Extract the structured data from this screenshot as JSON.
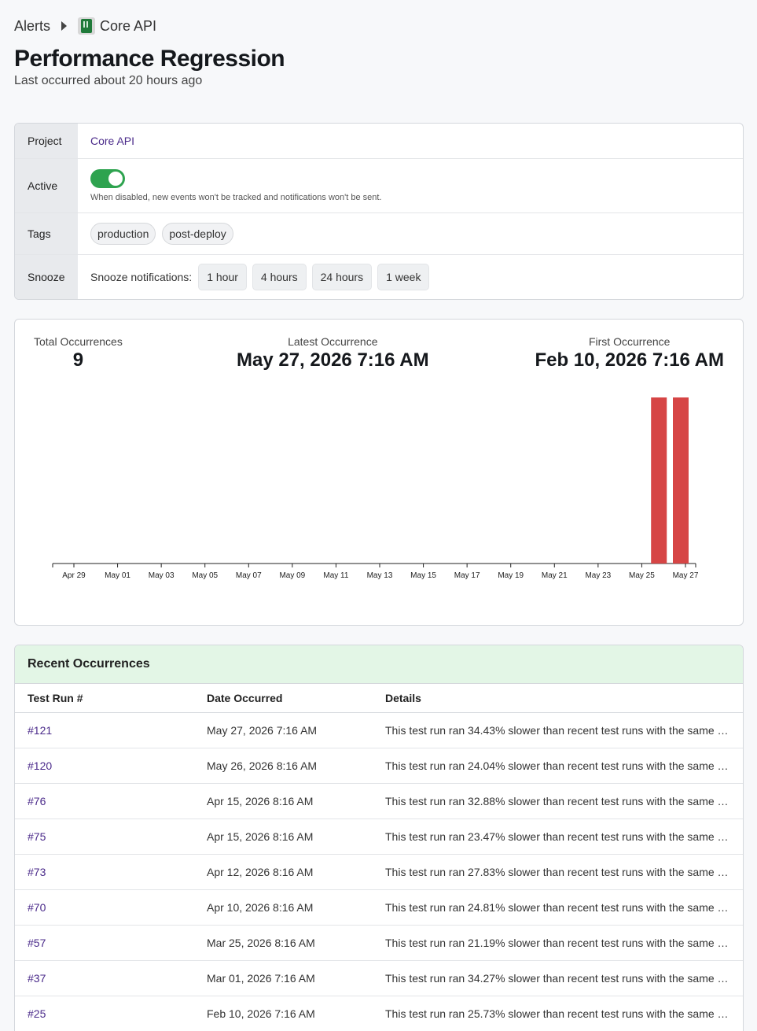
{
  "breadcrumb": {
    "root": "Alerts",
    "project": "Core API"
  },
  "title": "Performance Regression",
  "subtitle": "Last occurred about 20 hours ago",
  "details": {
    "project_label": "Project",
    "project_value": "Core API",
    "active_label": "Active",
    "active_state": true,
    "active_hint": "When disabled, new events won't be tracked and notifications won't be sent.",
    "tags_label": "Tags",
    "tags": [
      "production",
      "post-deploy"
    ],
    "snooze_label": "Snooze",
    "snooze_prompt": "Snooze notifications:",
    "snooze_options": [
      "1 hour",
      "4 hours",
      "24 hours",
      "1 week"
    ]
  },
  "stats": {
    "total_label": "Total Occurrences",
    "total_value": "9",
    "latest_label": "Latest Occurrence",
    "latest_value": "May 27, 2026 7:16 AM",
    "first_label": "First Occurrence",
    "first_value": "Feb 10, 2026 7:16 AM"
  },
  "chart_data": {
    "type": "bar",
    "x": [
      "Apr 29",
      "May 01",
      "May 03",
      "May 05",
      "May 07",
      "May 09",
      "May 11",
      "May 13",
      "May 15",
      "May 17",
      "May 19",
      "May 21",
      "May 23",
      "May 25",
      "May 27"
    ],
    "bars": [
      {
        "date": "May 26",
        "value": 1
      },
      {
        "date": "May 27",
        "value": 1
      }
    ],
    "color": "#d64545"
  },
  "occurrences": {
    "title": "Recent Occurrences",
    "columns": [
      "Test Run #",
      "Date Occurred",
      "Details"
    ],
    "rows": [
      {
        "run": "#121",
        "date": "May 27, 2026 7:16 AM",
        "details": "This test run ran 34.43% slower than recent test runs with the same test suite."
      },
      {
        "run": "#120",
        "date": "May 26, 2026 8:16 AM",
        "details": "This test run ran 24.04% slower than recent test runs with the same test suite."
      },
      {
        "run": "#76",
        "date": "Apr 15, 2026 8:16 AM",
        "details": "This test run ran 32.88% slower than recent test runs with the same test suite."
      },
      {
        "run": "#75",
        "date": "Apr 15, 2026 8:16 AM",
        "details": "This test run ran 23.47% slower than recent test runs with the same test suite."
      },
      {
        "run": "#73",
        "date": "Apr 12, 2026 8:16 AM",
        "details": "This test run ran 27.83% slower than recent test runs with the same test suite."
      },
      {
        "run": "#70",
        "date": "Apr 10, 2026 8:16 AM",
        "details": "This test run ran 24.81% slower than recent test runs with the same test suite."
      },
      {
        "run": "#57",
        "date": "Mar 25, 2026 8:16 AM",
        "details": "This test run ran 21.19% slower than recent test runs with the same test suite."
      },
      {
        "run": "#37",
        "date": "Mar 01, 2026 7:16 AM",
        "details": "This test run ran 34.27% slower than recent test runs with the same test suite."
      },
      {
        "run": "#25",
        "date": "Feb 10, 2026 7:16 AM",
        "details": "This test run ran 25.73% slower than recent test runs with the same test suite."
      }
    ]
  }
}
